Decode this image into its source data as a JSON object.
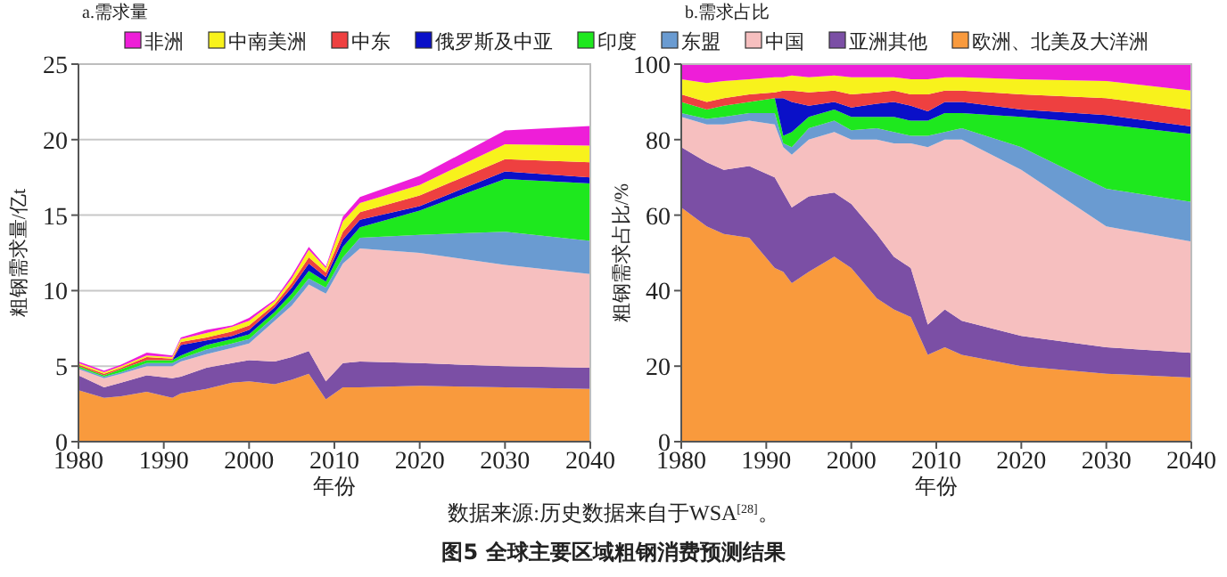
{
  "chart_data": [
    {
      "type": "area",
      "stacked": true,
      "title": "a.需求量",
      "xlabel": "年份",
      "ylabel": "粗钢需求量/亿t",
      "x": [
        1980,
        1983,
        1985,
        1988,
        1991,
        1992,
        1995,
        1998,
        2000,
        2003,
        2005,
        2007,
        2009,
        2011,
        2013,
        2020,
        2030,
        2040
      ],
      "xlim": [
        1980,
        2040
      ],
      "xticks": [
        1980,
        1990,
        2000,
        2010,
        2020,
        2030,
        2040
      ],
      "ylim": [
        0,
        25
      ],
      "yticks": [
        0,
        5,
        10,
        15,
        20,
        25
      ],
      "grid": "y",
      "legend": "top",
      "series": [
        {
          "name": "欧洲、北美及大洋洲",
          "color": "#f99a3d",
          "values": [
            3.4,
            2.9,
            3.0,
            3.3,
            2.9,
            3.2,
            3.5,
            3.9,
            4.0,
            3.8,
            4.1,
            4.5,
            2.8,
            3.6,
            3.6,
            3.7,
            3.6,
            3.5
          ]
        },
        {
          "name": "亚洲其他",
          "color": "#7b4fa5",
          "values": [
            1.0,
            0.7,
            0.9,
            1.1,
            1.3,
            1.1,
            1.4,
            1.3,
            1.4,
            1.5,
            1.5,
            1.5,
            1.2,
            1.6,
            1.7,
            1.5,
            1.4,
            1.4
          ]
        },
        {
          "name": "中国",
          "color": "#f6bfbf",
          "values": [
            0.4,
            0.6,
            0.6,
            0.6,
            0.8,
            1.0,
            0.9,
            1.0,
            1.1,
            2.7,
            3.4,
            4.4,
            5.8,
            6.6,
            7.5,
            7.3,
            6.7,
            6.2
          ]
        },
        {
          "name": "东盟",
          "color": "#6a9bd1",
          "values": [
            0.1,
            0.1,
            0.1,
            0.2,
            0.2,
            0.2,
            0.3,
            0.3,
            0.3,
            0.3,
            0.4,
            0.4,
            0.4,
            0.4,
            0.7,
            1.2,
            2.2,
            2.2
          ]
        },
        {
          "name": "印度",
          "color": "#1ee81e",
          "values": [
            0.1,
            0.1,
            0.2,
            0.2,
            0.2,
            0.2,
            0.3,
            0.3,
            0.3,
            0.3,
            0.4,
            0.5,
            0.4,
            0.7,
            0.7,
            1.6,
            3.5,
            3.8
          ]
        },
        {
          "name": "俄罗斯及中亚",
          "color": "#0a10c8",
          "values": [
            0,
            0,
            0,
            0,
            0,
            0.7,
            0.3,
            0.2,
            0.3,
            0.3,
            0.4,
            0.5,
            0.3,
            0.5,
            0.5,
            0.3,
            0.5,
            0.4
          ]
        },
        {
          "name": "中东",
          "color": "#ee4040",
          "values": [
            0.1,
            0.1,
            0.1,
            0.2,
            0.1,
            0.2,
            0.2,
            0.3,
            0.3,
            0.2,
            0.3,
            0.4,
            0.3,
            0.5,
            0.5,
            0.7,
            0.8,
            1.0
          ]
        },
        {
          "name": "中南美洲",
          "color": "#f8f21c",
          "values": [
            0.1,
            0.1,
            0.1,
            0.1,
            0.1,
            0.2,
            0.3,
            0.3,
            0.3,
            0.2,
            0.3,
            0.5,
            0.3,
            0.7,
            0.6,
            0.7,
            1.0,
            1.1
          ]
        },
        {
          "name": "非洲",
          "color": "#ee1ed8",
          "values": [
            0.1,
            0.1,
            0.1,
            0.2,
            0.1,
            0.1,
            0.2,
            0.1,
            0.2,
            0.1,
            0.2,
            0.2,
            0.1,
            0.3,
            0.4,
            0.6,
            0.9,
            1.3
          ]
        }
      ],
      "annotations": [
        "数据来源:历史数据来自于WSA$^{[28]}$。",
        "图5 全球主要区域粗钢消费预测结果"
      ]
    },
    {
      "type": "area",
      "stacked": true,
      "title": "b.需求占比",
      "xlabel": "年份",
      "ylabel": "粗钢需求占比/%",
      "x": [
        1980,
        1983,
        1985,
        1988,
        1991,
        1992,
        1993,
        1995,
        1998,
        2000,
        2003,
        2005,
        2007,
        2009,
        2011,
        2013,
        2020,
        2030,
        2040
      ],
      "xlim": [
        1980,
        2040
      ],
      "xticks": [
        1980,
        1990,
        2000,
        2010,
        2020,
        2030,
        2040
      ],
      "ylim": [
        0,
        100
      ],
      "yticks": [
        0,
        20,
        40,
        60,
        80,
        100
      ],
      "series": [
        {
          "color": "#f99a3d",
          "values": [
            62,
            57,
            55,
            54,
            46,
            45,
            42,
            45,
            49,
            46,
            38,
            35,
            33,
            23,
            25,
            23,
            20,
            18,
            17
          ]
        },
        {
          "color": "#7b4fa5",
          "values": [
            16,
            17,
            17,
            19,
            24,
            21,
            20,
            20,
            17,
            17,
            17,
            14,
            13,
            8,
            10,
            9,
            8,
            7,
            6.5
          ]
        },
        {
          "color": "#f6bfbf",
          "values": [
            8,
            10,
            12,
            12,
            14,
            12,
            14,
            15,
            16,
            17,
            25,
            30,
            33,
            47,
            45,
            48,
            44,
            32,
            29.5
          ]
        },
        {
          "color": "#6a9bd1",
          "values": [
            1,
            1.5,
            2,
            2,
            3,
            1,
            2,
            3,
            3,
            2.5,
            3,
            3,
            2,
            3,
            2,
            3,
            6,
            10,
            10.5
          ]
        },
        {
          "color": "#1ee81e",
          "values": [
            3,
            2.5,
            3,
            3,
            4,
            2,
            4,
            3,
            3,
            3.5,
            3,
            4,
            4,
            4,
            5,
            4,
            8,
            17,
            18
          ]
        },
        {
          "color": "#0a10c8",
          "values": [
            0,
            0,
            0,
            0,
            0,
            10,
            8,
            3,
            2,
            2.5,
            3.5,
            4,
            4,
            2.5,
            3,
            3,
            2,
            2.5,
            2
          ]
        },
        {
          "color": "#ee4040",
          "values": [
            2,
            2,
            2,
            2,
            1.5,
            2,
            3,
            3.5,
            3,
            3.5,
            3,
            3,
            3,
            4.5,
            3,
            3,
            4,
            4.5,
            4.5
          ]
        },
        {
          "color": "#f8f21c",
          "values": [
            4,
            5,
            4.5,
            4,
            4,
            3.5,
            4,
            4,
            4,
            4.5,
            4,
            3.5,
            4,
            4,
            3.5,
            3.5,
            4,
            4.5,
            5
          ]
        },
        {
          "color": "#ee1ed8",
          "values": [
            4,
            5,
            4.5,
            4,
            3.5,
            3.5,
            3,
            3.5,
            3,
            3.5,
            3.5,
            3.5,
            4,
            4,
            3.5,
            3.5,
            4,
            4.5,
            7
          ]
        }
      ]
    }
  ]
}
